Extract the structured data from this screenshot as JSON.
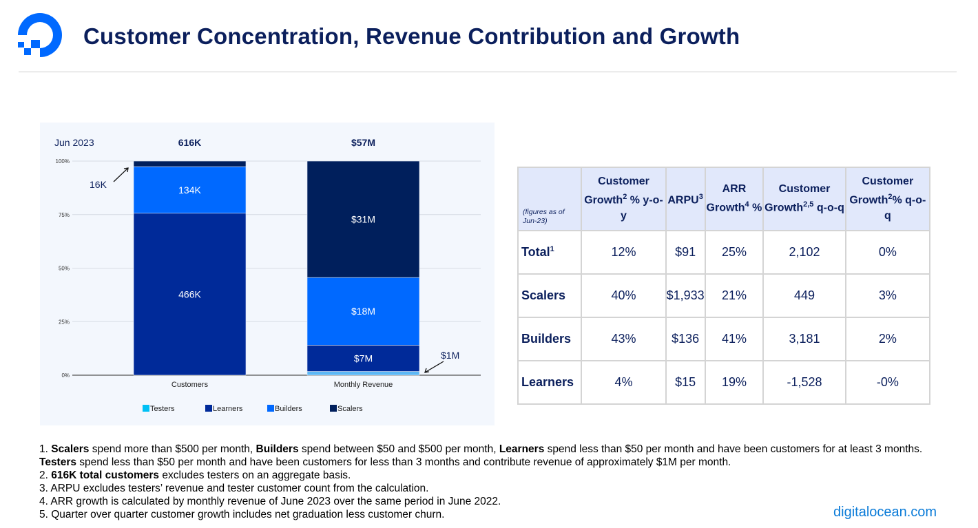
{
  "header": {
    "title": "Customer Concentration, Revenue Contribution and Growth",
    "logo": "digitalocean-logo"
  },
  "colors": {
    "Testers": "#00c0f5",
    "Learners": "#002a99",
    "Builders": "#0069ff",
    "Scalers": "#001f5c",
    "title": "#0b1f5c",
    "bg": "#f3f7fd"
  },
  "chart_data": {
    "type": "bar",
    "stacked": "percent",
    "title": "Jun 2023",
    "categories": [
      "Customers",
      "Monthly Revenue"
    ],
    "totals": [
      "616K",
      "$57M"
    ],
    "series": [
      {
        "name": "Testers",
        "values": [
          0,
          1
        ],
        "labels": [
          "",
          "$1M"
        ]
      },
      {
        "name": "Learners",
        "values": [
          466,
          7
        ],
        "labels": [
          "466K",
          "$7M"
        ]
      },
      {
        "name": "Builders",
        "values": [
          134,
          18
        ],
        "labels": [
          "134K",
          "$18M"
        ]
      },
      {
        "name": "Scalers",
        "values": [
          16,
          31
        ],
        "labels": [
          "16K",
          "$31M"
        ]
      }
    ],
    "yticks": [
      "0%",
      "25%",
      "50%",
      "75%",
      "100%"
    ],
    "ylim": [
      0,
      100
    ],
    "legend": "bottom",
    "grid": true
  },
  "table": {
    "corner": "(figures as of Jun-23)",
    "headers": [
      {
        "a": "Customer Growth",
        "sup": "2",
        "b": " % y-o-y"
      },
      {
        "a": "ARPU",
        "sup": "3",
        "b": ""
      },
      {
        "a": "ARR Growth",
        "sup": "4",
        "b": " %"
      },
      {
        "a": "Customer Growth",
        "sup": "2,5",
        "b": " q-o-q"
      },
      {
        "a": "Customer Growth",
        "sup": "2",
        "b": "% q-o-q"
      }
    ],
    "rows": [
      {
        "label": "Total",
        "sup": "1",
        "cells": [
          "12%",
          "$91",
          "25%",
          "2,102",
          "0%"
        ]
      },
      {
        "label": "Scalers",
        "sup": "",
        "cells": [
          "40%",
          "$1,933",
          "21%",
          "449",
          "3%"
        ]
      },
      {
        "label": "Builders",
        "sup": "",
        "cells": [
          "43%",
          "$136",
          "41%",
          "3,181",
          "2%"
        ]
      },
      {
        "label": "Learners",
        "sup": "",
        "cells": [
          "4%",
          "$15",
          "19%",
          "-1,528",
          "-0%"
        ]
      }
    ]
  },
  "footnotes": [
    [
      [
        "1. ",
        0
      ],
      [
        "Scalers",
        1
      ],
      [
        " spend more than $500 per month, ",
        0
      ],
      [
        "Builders",
        1
      ],
      [
        " spend between $50 and $500 per month, ",
        0
      ],
      [
        "Learners",
        1
      ],
      [
        " spend less than $50 per month and have been customers for at least 3 months. ",
        0
      ],
      [
        "Testers",
        1
      ],
      [
        "  spend less than $50 per month and have been customers for less than 3 months and contribute revenue of approximately $1M per month.",
        0
      ]
    ],
    [
      [
        "2. ",
        0
      ],
      [
        "616K total customers",
        1
      ],
      [
        " excludes testers on an aggregate basis.",
        0
      ]
    ],
    [
      [
        "3. ARPU excludes testers’ revenue and tester customer count from the calculation.",
        0
      ]
    ],
    [
      [
        "4. ARR growth is calculated by monthly revenue of June 2023 over the same period in June 2022.",
        0
      ]
    ],
    [
      [
        "5. Quarter over quarter customer growth includes net graduation less customer churn.",
        0
      ]
    ]
  ],
  "site": "digitalocean.com"
}
